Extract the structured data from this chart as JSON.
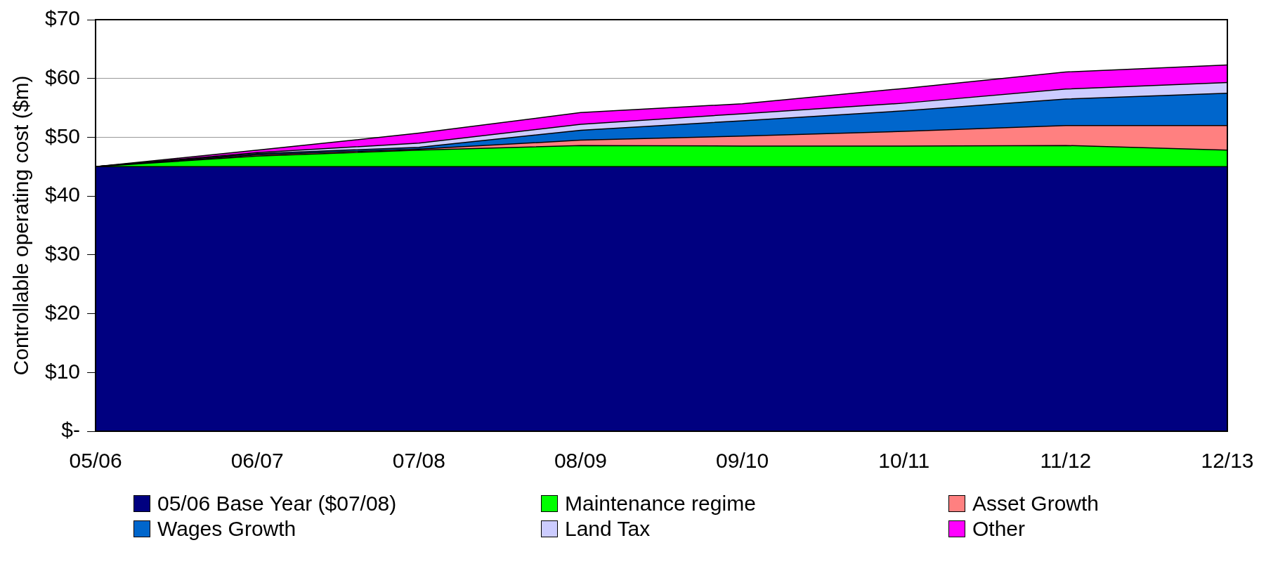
{
  "chart_data": {
    "type": "area",
    "stacked": true,
    "ylabel": "Controllable operating cost ($m)",
    "categories": [
      "05/06",
      "06/07",
      "07/08",
      "08/09",
      "09/10",
      "10/11",
      "11/12",
      "12/13"
    ],
    "series": [
      {
        "name": "05/06 Base Year ($07/08)",
        "color": "#000080",
        "values": [
          45,
          45,
          45,
          45,
          45,
          45,
          45,
          45
        ]
      },
      {
        "name": "Maintenance regime",
        "color": "#00ff00",
        "values": [
          0,
          1.8,
          2.8,
          3.6,
          3.5,
          3.5,
          3.6,
          2.8
        ]
      },
      {
        "name": "Asset Growth",
        "color": "#ff8080",
        "values": [
          0,
          0.2,
          0.2,
          0.9,
          1.7,
          2.5,
          3.4,
          4.2
        ]
      },
      {
        "name": "Wages Growth",
        "color": "#0066cc",
        "values": [
          0,
          0.2,
          0.3,
          1.7,
          2.6,
          3.5,
          4.5,
          5.5
        ]
      },
      {
        "name": "Land Tax",
        "color": "#ccccff",
        "values": [
          0,
          0.2,
          0.7,
          1.0,
          1.2,
          1.3,
          1.7,
          1.8
        ]
      },
      {
        "name": "Other",
        "color": "#ff00ff",
        "values": [
          0,
          0.4,
          1.7,
          2.0,
          1.7,
          2.5,
          2.9,
          3.0
        ]
      }
    ],
    "ylim": [
      0,
      70
    ],
    "yticks": [
      {
        "value": 0,
        "label": "$-"
      },
      {
        "value": 10,
        "label": "$10"
      },
      {
        "value": 20,
        "label": "$20"
      },
      {
        "value": 30,
        "label": "$30"
      },
      {
        "value": 40,
        "label": "$40"
      },
      {
        "value": 50,
        "label": "$50"
      },
      {
        "value": 60,
        "label": "$60"
      },
      {
        "value": 70,
        "label": "$70"
      }
    ],
    "grid": "y",
    "legend": "bottom"
  }
}
